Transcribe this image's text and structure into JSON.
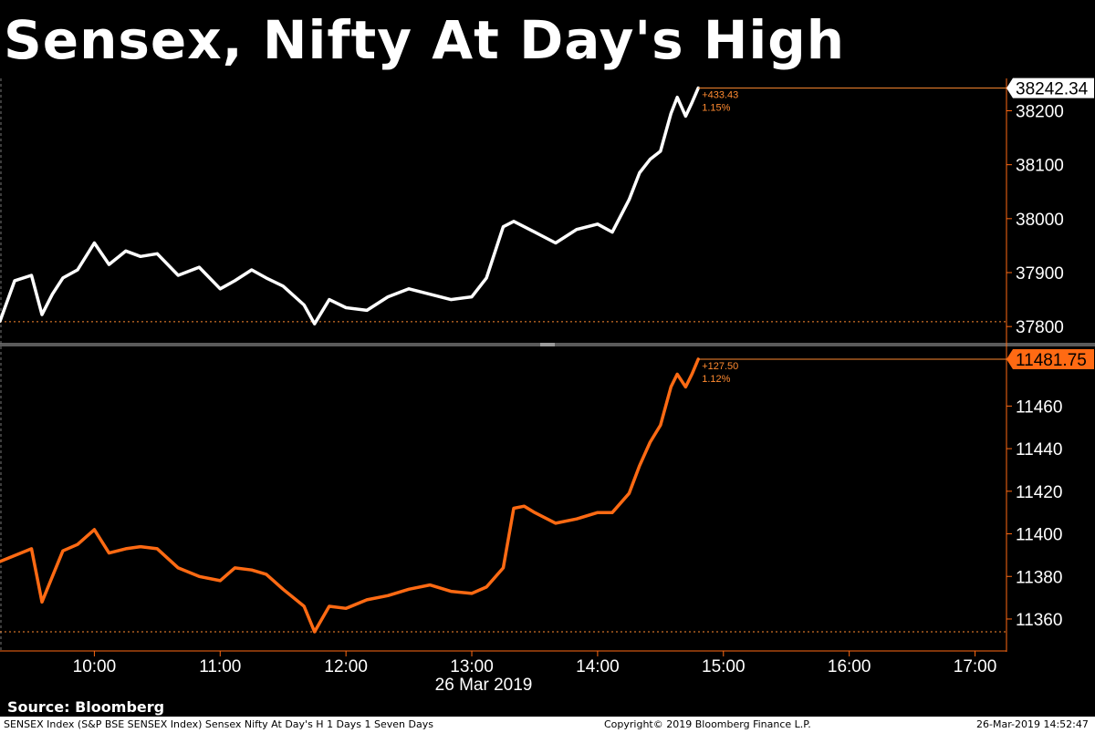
{
  "title": "Sensex, Nifty At Day's High",
  "source": "Source: Bloomberg",
  "footer": {
    "left": "SENSEX Index (S&P BSE SENSEX Index) Sensex Nifty At Day's H 1 Days 1 Seven Days",
    "center": "Copyright© 2019 Bloomberg Finance L.P.",
    "right": "26-Mar-2019 14:52:47"
  },
  "colors": {
    "sensex": "#ffffff",
    "nifty": "#ff6a13",
    "axis": "#ff6a13",
    "ref": "#ff8a30"
  },
  "chart_data": [
    {
      "type": "line",
      "name": "SENSEX",
      "x_ticks": [
        "10:00",
        "11:00",
        "12:00",
        "13:00",
        "14:00",
        "15:00",
        "16:00",
        "17:00"
      ],
      "x_date_label": "26 Mar 2019",
      "x_range": [
        "9:15",
        "17:15"
      ],
      "ylim": [
        37780,
        38260
      ],
      "y_ticks": [
        "37800",
        "37900",
        "38000",
        "38100",
        "38200"
      ],
      "last_value": "38242.34",
      "change": "+433.43",
      "change_pct": "1.15%",
      "ref_level": 37809,
      "x": [
        "9:15",
        "9:22",
        "9:30",
        "9:35",
        "9:40",
        "9:45",
        "9:52",
        "10:00",
        "10:07",
        "10:15",
        "10:22",
        "10:30",
        "10:40",
        "10:50",
        "11:00",
        "11:07",
        "11:15",
        "11:22",
        "11:30",
        "11:40",
        "11:45",
        "11:52",
        "12:00",
        "12:10",
        "12:20",
        "12:30",
        "12:40",
        "12:50",
        "13:00",
        "13:07",
        "13:15",
        "13:20",
        "13:25",
        "13:30",
        "13:40",
        "13:50",
        "14:00",
        "14:07",
        "14:15",
        "14:20",
        "14:25",
        "14:30",
        "14:35",
        "14:38",
        "14:42",
        "14:45",
        "14:48"
      ],
      "y": [
        37810,
        37885,
        37895,
        37822,
        37860,
        37890,
        37905,
        37955,
        37915,
        37940,
        37930,
        37935,
        37895,
        37910,
        37870,
        37885,
        37905,
        37890,
        37875,
        37840,
        37805,
        37850,
        37835,
        37830,
        37855,
        37870,
        37860,
        37850,
        37855,
        37890,
        37985,
        37995,
        37985,
        37975,
        37955,
        37980,
        37990,
        37975,
        38035,
        38085,
        38110,
        38125,
        38195,
        38225,
        38190,
        38215,
        38242
      ]
    },
    {
      "type": "line",
      "name": "NIFTY",
      "x_range": [
        "9:15",
        "17:15"
      ],
      "ylim": [
        11345,
        11488
      ],
      "y_ticks": [
        "11360",
        "11380",
        "11400",
        "11420",
        "11440",
        "11460"
      ],
      "last_value": "11481.75",
      "change": "+127.50",
      "change_pct": "1.12%",
      "ref_level": 11354,
      "x": [
        "9:15",
        "9:30",
        "9:35",
        "9:40",
        "9:45",
        "9:52",
        "10:00",
        "10:07",
        "10:15",
        "10:22",
        "10:30",
        "10:40",
        "10:50",
        "11:00",
        "11:07",
        "11:15",
        "11:22",
        "11:30",
        "11:40",
        "11:45",
        "11:52",
        "12:00",
        "12:10",
        "12:20",
        "12:30",
        "12:40",
        "12:50",
        "13:00",
        "13:07",
        "13:15",
        "13:20",
        "13:25",
        "13:30",
        "13:40",
        "13:50",
        "14:00",
        "14:07",
        "14:15",
        "14:20",
        "14:25",
        "14:30",
        "14:35",
        "14:38",
        "14:42",
        "14:45",
        "14:48"
      ],
      "y": [
        11387,
        11393,
        11368,
        11380,
        11392,
        11395,
        11402,
        11391,
        11393,
        11394,
        11393,
        11384,
        11380,
        11378,
        11384,
        11383,
        11381,
        11374,
        11366,
        11354,
        11366,
        11365,
        11369,
        11371,
        11374,
        11376,
        11373,
        11372,
        11375,
        11384,
        11412,
        11413,
        11410,
        11405,
        11407,
        11410,
        11410,
        11419,
        11432,
        11443,
        11451,
        11469,
        11475,
        11469,
        11475,
        11482
      ]
    }
  ]
}
